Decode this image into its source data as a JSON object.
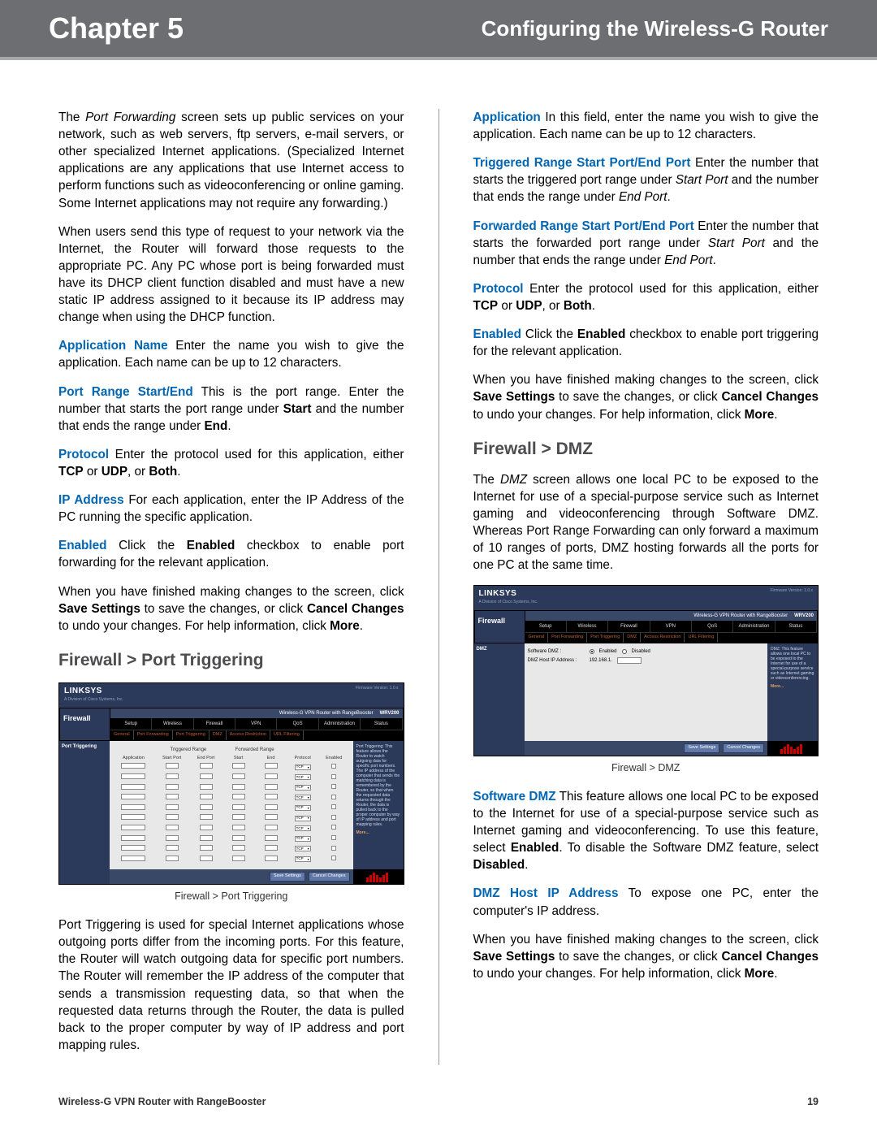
{
  "header": {
    "chapter": "Chapter 5",
    "title": "Configuring the Wireless-G Router"
  },
  "left": {
    "p1_a": "The ",
    "p1_em": "Port Forwarding",
    "p1_b": " screen sets up public services on your network, such as web servers, ftp servers, e-mail servers, or other specialized Internet applications. (Specialized Internet applications are any applications that use Internet access to perform functions such as videoconferencing or online gaming. Some Internet applications may not require any forwarding.)",
    "p2": "When users send this type of request to your network via the Internet, the Router will forward those requests to the appropriate PC. Any PC whose port is being forwarded must have its DHCP client function disabled and must have a new static IP address assigned to it because its IP address may change when using the DHCP function.",
    "app_name_label": "Application Name",
    "app_name_text": "  Enter the name you wish to give the application. Each name can be up to 12 characters.",
    "port_range_label": "Port Range Start/End",
    "port_range_a": "  This is the port range. Enter the number that starts the port range under ",
    "port_range_start": "Start",
    "port_range_b": " and the number that ends the range under ",
    "port_range_end": "End",
    "port_range_c": ".",
    "protocol_label": "Protocol",
    "protocol_a": "  Enter the protocol used for this application, either ",
    "tcp": "TCP",
    "protocol_b": " or ",
    "udp": "UDP",
    "protocol_c": ", or ",
    "both": "Both",
    "protocol_d": ".",
    "ip_label": "IP Address",
    "ip_text": "  For each application, enter the IP Address of the PC running the specific application.",
    "enabled_label": "Enabled",
    "enabled_a": "  Click the ",
    "enabled_b": "Enabled",
    "enabled_c": " checkbox to enable port forwarding for the relevant application.",
    "save_a": "When you have finished making changes to the screen, click ",
    "save_settings": "Save Settings",
    "save_b": " to save the changes, or click ",
    "cancel_changes": "Cancel Changes",
    "save_c": " to undo your changes. For help information, click ",
    "more": "More",
    "save_d": ".",
    "h2_pt": "Firewall > Port Triggering",
    "fig1_caption": "Firewall > Port Triggering",
    "pt_desc": "Port Triggering is used for special Internet applications whose outgoing ports differ from the incoming ports. For this feature, the Router will watch outgoing data for specific port numbers. The Router will remember the IP address of the computer that sends a transmission requesting data, so that when the requested data returns through the Router, the data is pulled back to the proper computer by way of IP address and port mapping rules."
  },
  "right": {
    "app_label": "Application",
    "app_text": "  In this field, enter the name you wish to give the application. Each name can be up to 12 characters.",
    "trig_label": "Triggered Range Start Port/End Port",
    "trig_a": "  Enter the number that starts the triggered port range under ",
    "start_port": "Start Port",
    "trig_b": " and the number that ends the range under ",
    "end_port": "End Port",
    "trig_c": ".",
    "fwd_label": "Forwarded Range Start Port/End Port",
    "fwd_a": "  Enter the number that starts the forwarded port range under ",
    "fwd_b": " and the number that ends the range under ",
    "fwd_c": ".",
    "protocol_label": "Protocol",
    "protocol_a": "  Enter the protocol used for this application, either ",
    "tcp": "TCP",
    "protocol_b": " or ",
    "udp": "UDP",
    "protocol_c": ", or ",
    "both": "Both",
    "protocol_d": ".",
    "enabled_label": "Enabled",
    "enabled_a": "  Click the ",
    "enabled_b": "Enabled",
    "enabled_c": " checkbox to enable port triggering for the relevant application.",
    "save_a": "When you have finished making changes to the screen, click ",
    "save_settings": "Save Settings",
    "save_b": " to save the changes, or click ",
    "cancel_changes": "Cancel Changes",
    "save_c": " to undo your changes. For help information, click ",
    "more": "More",
    "save_d": ".",
    "h2_dmz": "Firewall > DMZ",
    "dmz_p_a": "The ",
    "dmz_em": "DMZ",
    "dmz_p_b": " screen allows one local PC to be exposed to the Internet for use of a special-purpose service such as Internet gaming and videoconferencing through Software DMZ. Whereas Port Range Forwarding can only forward a maximum of 10 ranges of ports, DMZ hosting forwards all the ports for one PC at the same time.",
    "fig2_caption": "Firewall > DMZ",
    "sdmz_label": "Software DMZ",
    "sdmz_a": "  This feature allows one local PC to be exposed to the Internet for use of a special-purpose service such as Internet gaming and videoconferencing. To use this feature, select ",
    "sdmz_enabled": "Enabled",
    "sdmz_b": ". To disable the Software DMZ feature, select ",
    "sdmz_disabled": "Disabled",
    "sdmz_c": ".",
    "dmzhost_label": "DMZ Host IP Address",
    "dmzhost_text": " To expose one PC, enter the computer's IP address."
  },
  "router_ui": {
    "logo": "LINKSYS",
    "logo_sub": "A Division of Cisco Systems, Inc.",
    "fw_ver": "Firmware Version: 1.0.x",
    "model_text": "Wireless-G VPN Router with RangeBooster",
    "model_code": "WRV200",
    "section": "Firewall",
    "main_tabs": [
      "Setup",
      "Wireless",
      "Firewall",
      "VPN",
      "QoS",
      "Administration",
      "Status"
    ],
    "sub_tabs_pt": [
      "General",
      "Port Forwarding",
      "Port Triggering",
      "DMZ",
      "Access Restriction",
      "URL Filtering"
    ],
    "pt_side": "Port Triggering",
    "dmz_side": "DMZ",
    "pt_group1": "Triggered Range",
    "pt_group2": "Forwarded Range",
    "pt_cols": [
      "Application",
      "Start Port",
      "End Port",
      "Start",
      "End",
      "Protocol",
      "Enabled"
    ],
    "pt_proto": "TCP",
    "help_pt": "Port Triggering: This feature allows the Router to watch outgoing data for specific port numbers. The IP address of the computer that sends the matching data is remembered by the Router, so that when the requested data returns through the Router, the data is pulled back to the proper computer by way of IP address and port mapping rules.",
    "help_dmz": "DMZ: This feature allows one local PC to be exposed to the Internet for use of a special-purpose service such as Internet gaming or videoconferencing.",
    "more": "More...",
    "dmz_field1": "Software DMZ :",
    "dmz_field2": "DMZ Host IP Address :",
    "enabled": "Enabled",
    "disabled": "Disabled",
    "ip_prefix": "192.168.1.",
    "btn_save": "Save Settings",
    "btn_cancel": "Cancel Changes",
    "row_count": 10
  },
  "colors": {
    "header_bg": "#6d6e71",
    "header_underline": "#a7a9ac",
    "link_blue": "#0066b3",
    "heading_gray": "#4d4d4f",
    "router_bg": "#2b3a5a"
  },
  "footer": {
    "product": "Wireless-G VPN Router with RangeBooster",
    "page": "19"
  }
}
